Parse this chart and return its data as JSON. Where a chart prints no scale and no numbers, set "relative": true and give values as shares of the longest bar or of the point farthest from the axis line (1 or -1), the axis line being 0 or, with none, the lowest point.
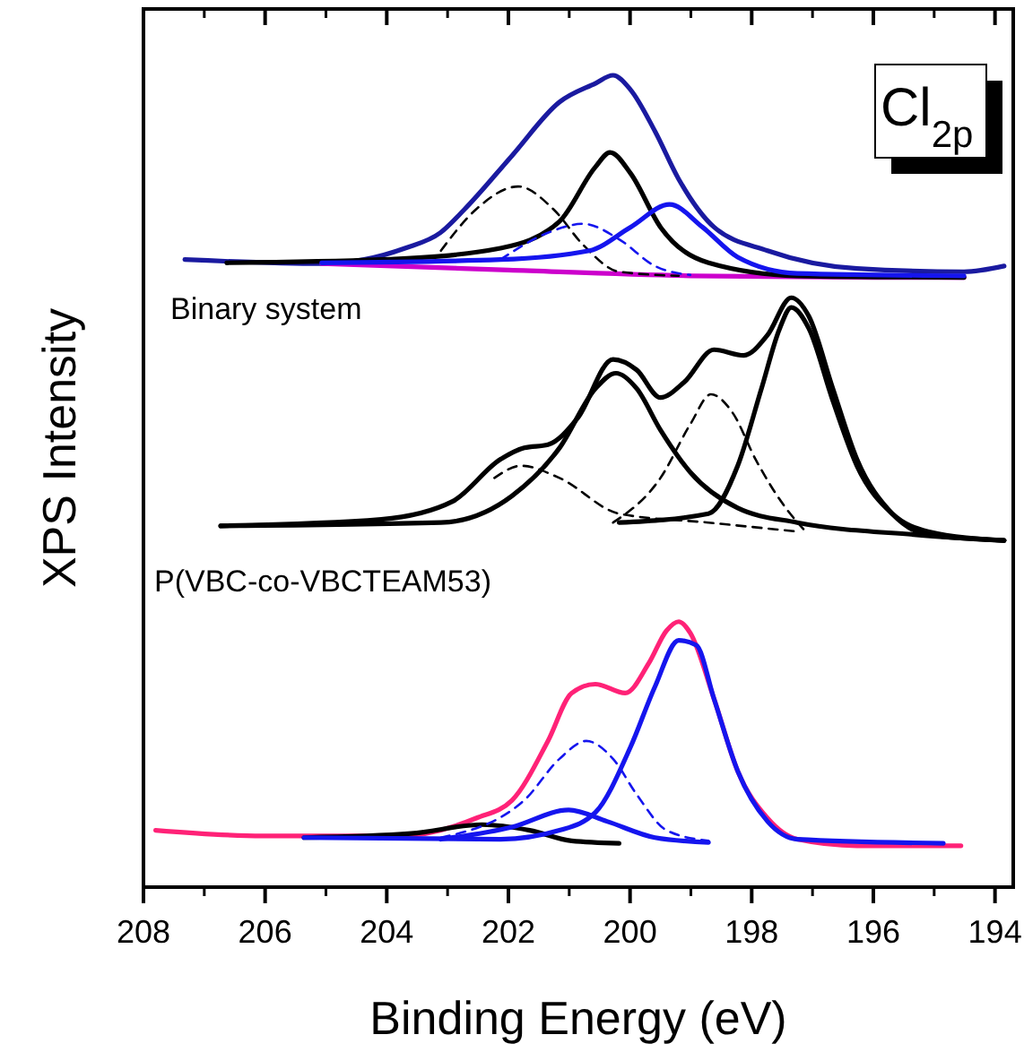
{
  "chart_data": {
    "type": "line",
    "title": "Cl$_{2p}$",
    "xlabel": "Binding Energy (eV)",
    "ylabel": "XPS Intensity",
    "relative": true,
    "xlim": [
      208,
      193.7
    ],
    "xticks": [
      208,
      206,
      204,
      202,
      200,
      198,
      196,
      194
    ],
    "marker": "none",
    "annotations": [
      "Binary system",
      "P(VBC-co-VBCTEAM53)"
    ],
    "series": [
      {
        "color": "#1a1aa0",
        "line_style": "solid",
        "x": [
          207.32,
          205.07,
          203.7,
          203.12,
          202.72,
          201.94,
          201.16,
          200.57,
          200.28,
          199.99,
          199.59,
          199.2,
          198.62,
          197.74,
          196.27,
          194.51,
          193.85
        ],
        "values": [
          0.773,
          0.768,
          0.787,
          0.806,
          0.835,
          0.901,
          0.967,
          0.99,
          1.0,
          0.982,
          0.931,
          0.872,
          0.813,
          0.784,
          0.762,
          0.758,
          0.765
        ]
      },
      {
        "color": "#cc00cc",
        "line_style": "solid",
        "x": [
          205.07,
          202,
          199,
          196,
          194.51
        ],
        "values": [
          0.768,
          0.76,
          0.753,
          0.751,
          0.751
        ]
      },
      {
        "color": "#000000",
        "line_style": "solid",
        "x": [
          206.63,
          204.09,
          202.13,
          201.16,
          200.57,
          200.33,
          199.99,
          199.5,
          198.71,
          197.25,
          194.51
        ],
        "values": [
          0.769,
          0.773,
          0.787,
          0.82,
          0.887,
          0.905,
          0.879,
          0.813,
          0.769,
          0.753,
          0.751
        ]
      },
      {
        "color": "#000000",
        "line_style": "dashed",
        "x": [
          203.11,
          202.53,
          201.84,
          201.26,
          200.77,
          200.18,
          199.2
        ],
        "values": [
          0.784,
          0.835,
          0.863,
          0.835,
          0.791,
          0.758,
          0.753
        ]
      },
      {
        "color": "#1515ee",
        "line_style": "solid",
        "x": [
          205.07,
          202.13,
          200.67,
          199.99,
          199.35,
          198.81,
          198.23,
          197.25,
          194.51
        ],
        "values": [
          0.769,
          0.773,
          0.784,
          0.813,
          0.841,
          0.813,
          0.776,
          0.756,
          0.753
        ]
      },
      {
        "color": "#1515ee",
        "line_style": "dashed",
        "x": [
          202.13,
          201.35,
          200.77,
          200.18,
          199.59,
          199.01
        ],
        "values": [
          0.773,
          0.806,
          0.817,
          0.798,
          0.765,
          0.754
        ]
      },
      {
        "color": "#000000",
        "line_style": "solid",
        "x": [
          206.73,
          204.09,
          202.92,
          202.13,
          201.74,
          201.35,
          200.86,
          200.28,
          199.89,
          199.5,
          199.11,
          198.62,
          198.13,
          197.74,
          197.35,
          197.06,
          196.67,
          196.27,
          195.69,
          195.1,
          193.85
        ],
        "values": [
          0.445,
          0.453,
          0.475,
          0.527,
          0.541,
          0.545,
          0.578,
          0.65,
          0.637,
          0.603,
          0.622,
          0.662,
          0.655,
          0.68,
          0.726,
          0.703,
          0.615,
          0.527,
          0.46,
          0.434,
          0.427
        ]
      },
      {
        "color": "#000000",
        "line_style": "solid",
        "x": [
          206.73,
          203.11,
          201.94,
          201.16,
          200.57,
          200.23,
          199.89,
          199.5,
          199.01,
          198.23,
          197.25,
          195.29,
          193.85
        ],
        "values": [
          0.445,
          0.449,
          0.482,
          0.541,
          0.614,
          0.633,
          0.614,
          0.563,
          0.511,
          0.467,
          0.449,
          0.434,
          0.427
        ]
      },
      {
        "color": "#000000",
        "line_style": "solid",
        "x": [
          200.18,
          198.71,
          198.23,
          197.84,
          197.54,
          197.35,
          197.06,
          196.67,
          196.27,
          195.69,
          195.1,
          193.85
        ],
        "values": [
          0.449,
          0.46,
          0.519,
          0.614,
          0.688,
          0.714,
          0.688,
          0.6,
          0.519,
          0.46,
          0.438,
          0.427
        ]
      },
      {
        "color": "#000000",
        "line_style": "dashed",
        "x": [
          200.28,
          199.5,
          199.01,
          198.67,
          198.32,
          197.93,
          197.44,
          197.15
        ],
        "values": [
          0.449,
          0.504,
          0.57,
          0.607,
          0.585,
          0.526,
          0.467,
          0.441
        ]
      },
      {
        "color": "#000000",
        "line_style": "dashed",
        "x": [
          202.23,
          201.79,
          201.16,
          200.18,
          198.71,
          197.25
        ],
        "values": [
          0.504,
          0.519,
          0.504,
          0.46,
          0.449,
          0.438
        ]
      },
      {
        "color": "#ff2277",
        "line_style": "solid",
        "x": [
          207.8,
          206.04,
          203.8,
          202.53,
          201.94,
          201.35,
          200.96,
          200.57,
          200.08,
          199.69,
          199.4,
          199.2,
          199.01,
          198.62,
          198.23,
          197.74,
          197.25,
          196.27,
          194.56
        ],
        "values": [
          0.07,
          0.063,
          0.063,
          0.085,
          0.107,
          0.18,
          0.239,
          0.25,
          0.239,
          0.276,
          0.316,
          0.327,
          0.313,
          0.232,
          0.143,
          0.085,
          0.059,
          0.051,
          0.051
        ]
      },
      {
        "color": "#000000",
        "line_style": "solid",
        "x": [
          205.36,
          203.6,
          202.43,
          201.65,
          200.96,
          200.18
        ],
        "values": [
          0.061,
          0.066,
          0.077,
          0.07,
          0.057,
          0.054
        ]
      },
      {
        "color": "#1515ee",
        "line_style": "solid",
        "x": [
          205.36,
          202.13,
          201.16,
          200.57,
          199.99,
          199.59,
          199.2,
          198.91,
          198.62,
          198.23,
          197.74,
          197.25,
          194.85
        ],
        "values": [
          0.061,
          0.059,
          0.07,
          0.092,
          0.173,
          0.247,
          0.304,
          0.298,
          0.232,
          0.143,
          0.081,
          0.059,
          0.054
        ]
      },
      {
        "color": "#1515ee",
        "line_style": "dashed",
        "x": [
          203.11,
          201.74,
          201.16,
          200.72,
          200.28,
          199.89,
          199.4,
          198.71
        ],
        "values": [
          0.061,
          0.107,
          0.158,
          0.18,
          0.158,
          0.114,
          0.07,
          0.057
        ]
      },
      {
        "color": "#1515ee",
        "line_style": "solid",
        "x": [
          203.11,
          201.94,
          201.01,
          200.38,
          199.59,
          198.71
        ],
        "values": [
          0.059,
          0.074,
          0.095,
          0.081,
          0.061,
          0.055
        ]
      }
    ]
  }
}
